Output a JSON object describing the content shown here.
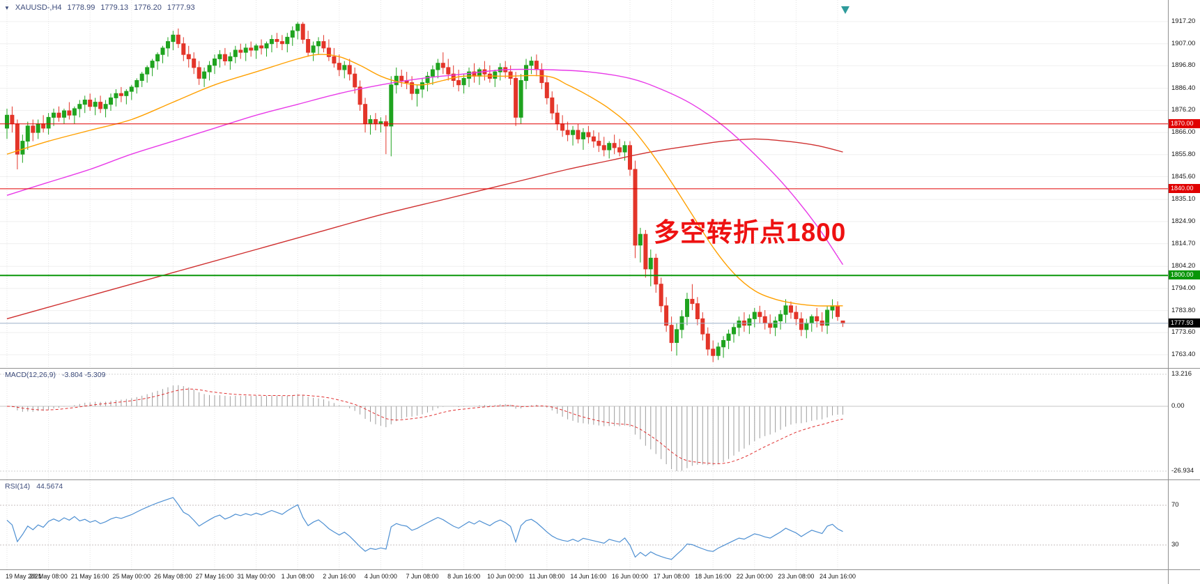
{
  "header": {
    "dropdown_icon": "▼",
    "symbol_period": "XAUUSD-,H4",
    "ohlc": {
      "open": "1778.99",
      "high": "1779.13",
      "low": "1776.20",
      "close": "1777.93"
    }
  },
  "annotation": {
    "text": "多空转折点1800",
    "color": "#ee1111"
  },
  "indicators": {
    "macd": {
      "label": "MACD(12,26,9)",
      "current_values": "-3.804 -5.309",
      "params": {
        "fast": 12,
        "slow": 26,
        "signal": 9
      },
      "axis_labels": [
        "13.216",
        "0.00",
        "-26.934"
      ]
    },
    "rsi": {
      "label": "RSI(14)",
      "current_value": "44.5674",
      "period": 14,
      "levels": [
        70,
        30
      ],
      "axis_labels": [
        "70",
        "30"
      ]
    }
  },
  "colors": {
    "bull": "#1fa31f",
    "bear": "#e33529",
    "level_red": "#e00000",
    "level_green": "#089608",
    "bid_line": "#9aafc8",
    "bid_badge_bg": "#000000",
    "macd_histogram": "#9c9c9c",
    "macd_signal": "#e03030",
    "rsi_line": "#4d8fd2",
    "header_text": "#3b4a7a",
    "grid_h": "#efefef",
    "grid_v": "#e3e3e3",
    "separator": "#909090",
    "shift_marker": "#2e9b9b"
  },
  "chart_data": {
    "type": "candlestick",
    "title": "XAUUSD-,H4",
    "symbol": "XAUUSD-",
    "timeframe": "H4",
    "ylim": [
      1757.3,
      1927.2
    ],
    "price_ticks": [
      "1917.20",
      "1907.00",
      "1896.80",
      "1886.40",
      "1876.20",
      "1866.00",
      "1855.80",
      "1845.60",
      "1835.10",
      "1824.90",
      "1814.70",
      "1804.20",
      "1794.00",
      "1783.80",
      "1773.60",
      "1763.40"
    ],
    "time_labels": [
      {
        "text": "19 May 2021",
        "bar": 0
      },
      {
        "text": "20 May 08:00",
        "bar": 8
      },
      {
        "text": "21 May 16:00",
        "bar": 16
      },
      {
        "text": "25 May 00:00",
        "bar": 24
      },
      {
        "text": "26 May 08:00",
        "bar": 32
      },
      {
        "text": "27 May 16:00",
        "bar": 40
      },
      {
        "text": "31 May 00:00",
        "bar": 48
      },
      {
        "text": "1 Jun 08:00",
        "bar": 56
      },
      {
        "text": "2 Jun 16:00",
        "bar": 64
      },
      {
        "text": "4 Jun 00:00",
        "bar": 72
      },
      {
        "text": "7 Jun 08:00",
        "bar": 80
      },
      {
        "text": "8 Jun 16:00",
        "bar": 88
      },
      {
        "text": "10 Jun 00:00",
        "bar": 96
      },
      {
        "text": "11 Jun 08:00",
        "bar": 104
      },
      {
        "text": "14 Jun 16:00",
        "bar": 112
      },
      {
        "text": "16 Jun 00:00",
        "bar": 120
      },
      {
        "text": "17 Jun 08:00",
        "bar": 128
      },
      {
        "text": "18 Jun 16:00",
        "bar": 136
      },
      {
        "text": "22 Jun 00:00",
        "bar": 144
      },
      {
        "text": "23 Jun 08:00",
        "bar": 152
      },
      {
        "text": "24 Jun 16:00",
        "bar": 160
      }
    ],
    "hlines": [
      {
        "value": 1870.0,
        "label": "1870.00",
        "color": "#e00000",
        "width": 1
      },
      {
        "value": 1840.0,
        "label": "1840.00",
        "color": "#e00000",
        "width": 1
      },
      {
        "value": 1800.0,
        "label": "1800.00",
        "color": "#089608",
        "width": 2
      }
    ],
    "bid": {
      "value": 1777.93,
      "label": "1777.93"
    },
    "moving_averages": [
      {
        "name": "ma-slow-red",
        "color": "#cf2f2f",
        "points": [
          [
            0,
            1780
          ],
          [
            12,
            1788
          ],
          [
            24,
            1796
          ],
          [
            36,
            1804
          ],
          [
            48,
            1812
          ],
          [
            60,
            1820
          ],
          [
            72,
            1828
          ],
          [
            84,
            1835
          ],
          [
            96,
            1842
          ],
          [
            108,
            1849
          ],
          [
            116,
            1853
          ],
          [
            124,
            1857
          ],
          [
            132,
            1860
          ],
          [
            138,
            1862
          ],
          [
            144,
            1863
          ],
          [
            150,
            1862
          ],
          [
            156,
            1860
          ],
          [
            161,
            1857
          ]
        ]
      },
      {
        "name": "ma-mid-magenta",
        "color": "#e83ae8",
        "points": [
          [
            0,
            1837
          ],
          [
            8,
            1843
          ],
          [
            16,
            1849
          ],
          [
            24,
            1856
          ],
          [
            32,
            1862
          ],
          [
            40,
            1868
          ],
          [
            48,
            1874
          ],
          [
            56,
            1879
          ],
          [
            64,
            1884
          ],
          [
            72,
            1888
          ],
          [
            80,
            1891
          ],
          [
            88,
            1893
          ],
          [
            96,
            1895
          ],
          [
            104,
            1895
          ],
          [
            112,
            1894
          ],
          [
            120,
            1891
          ],
          [
            126,
            1886
          ],
          [
            132,
            1879
          ],
          [
            138,
            1869
          ],
          [
            144,
            1856
          ],
          [
            150,
            1841
          ],
          [
            156,
            1823
          ],
          [
            161,
            1805
          ]
        ]
      },
      {
        "name": "ma-fast-orange",
        "color": "#ffa000",
        "points": [
          [
            0,
            1856
          ],
          [
            8,
            1862
          ],
          [
            16,
            1867
          ],
          [
            24,
            1872
          ],
          [
            32,
            1880
          ],
          [
            40,
            1888
          ],
          [
            48,
            1894
          ],
          [
            56,
            1900
          ],
          [
            60,
            1902
          ],
          [
            64,
            1901
          ],
          [
            68,
            1897
          ],
          [
            72,
            1892
          ],
          [
            76,
            1889
          ],
          [
            80,
            1888
          ],
          [
            84,
            1890
          ],
          [
            88,
            1892
          ],
          [
            96,
            1892
          ],
          [
            104,
            1892
          ],
          [
            108,
            1888
          ],
          [
            112,
            1883
          ],
          [
            116,
            1877
          ],
          [
            120,
            1869
          ],
          [
            124,
            1857
          ],
          [
            128,
            1843
          ],
          [
            132,
            1828
          ],
          [
            136,
            1813
          ],
          [
            140,
            1801
          ],
          [
            144,
            1793
          ],
          [
            148,
            1789
          ],
          [
            152,
            1787
          ],
          [
            156,
            1786
          ],
          [
            161,
            1786
          ]
        ]
      }
    ],
    "ohlc": [
      [
        1868,
        1877,
        1863,
        1874
      ],
      [
        1874,
        1878,
        1866,
        1870
      ],
      [
        1870,
        1872,
        1849,
        1856
      ],
      [
        1856,
        1865,
        1852,
        1862
      ],
      [
        1862,
        1871,
        1858,
        1869
      ],
      [
        1869,
        1872,
        1862,
        1866
      ],
      [
        1866,
        1872,
        1863,
        1870
      ],
      [
        1870,
        1874,
        1866,
        1868
      ],
      [
        1868,
        1875,
        1865,
        1873
      ],
      [
        1873,
        1877,
        1869,
        1875
      ],
      [
        1875,
        1878,
        1871,
        1873
      ],
      [
        1873,
        1877,
        1870,
        1876
      ],
      [
        1876,
        1880,
        1872,
        1874
      ],
      [
        1874,
        1878,
        1870,
        1877
      ],
      [
        1877,
        1881,
        1873,
        1879
      ],
      [
        1879,
        1883,
        1875,
        1881
      ],
      [
        1881,
        1884,
        1876,
        1878
      ],
      [
        1878,
        1882,
        1874,
        1880
      ],
      [
        1880,
        1883,
        1875,
        1877
      ],
      [
        1877,
        1881,
        1873,
        1879
      ],
      [
        1879,
        1884,
        1876,
        1882
      ],
      [
        1882,
        1886,
        1878,
        1884
      ],
      [
        1884,
        1887,
        1880,
        1883
      ],
      [
        1883,
        1886,
        1879,
        1885
      ],
      [
        1885,
        1888,
        1881,
        1887
      ],
      [
        1887,
        1891,
        1884,
        1890
      ],
      [
        1890,
        1894,
        1887,
        1893
      ],
      [
        1893,
        1897,
        1889,
        1896
      ],
      [
        1896,
        1900,
        1892,
        1899
      ],
      [
        1899,
        1903,
        1895,
        1902
      ],
      [
        1902,
        1906,
        1898,
        1905
      ],
      [
        1905,
        1910,
        1901,
        1908
      ],
      [
        1908,
        1913,
        1904,
        1911
      ],
      [
        1911,
        1914,
        1905,
        1907
      ],
      [
        1907,
        1910,
        1899,
        1902
      ],
      [
        1902,
        1906,
        1896,
        1900
      ],
      [
        1900,
        1903,
        1893,
        1896
      ],
      [
        1896,
        1899,
        1888,
        1891
      ],
      [
        1891,
        1896,
        1887,
        1894
      ],
      [
        1894,
        1899,
        1890,
        1897
      ],
      [
        1897,
        1902,
        1893,
        1900
      ],
      [
        1900,
        1904,
        1896,
        1902
      ],
      [
        1902,
        1905,
        1897,
        1899
      ],
      [
        1899,
        1903,
        1895,
        1901
      ],
      [
        1901,
        1906,
        1898,
        1904
      ],
      [
        1904,
        1907,
        1900,
        1903
      ],
      [
        1903,
        1907,
        1899,
        1905
      ],
      [
        1905,
        1908,
        1901,
        1904
      ],
      [
        1904,
        1907,
        1900,
        1906
      ],
      [
        1906,
        1909,
        1902,
        1905
      ],
      [
        1905,
        1908,
        1901,
        1907
      ],
      [
        1907,
        1911,
        1903,
        1909
      ],
      [
        1909,
        1912,
        1905,
        1908
      ],
      [
        1908,
        1911,
        1904,
        1907
      ],
      [
        1907,
        1912,
        1903,
        1910
      ],
      [
        1910,
        1915,
        1906,
        1913
      ],
      [
        1913,
        1917,
        1909,
        1916
      ],
      [
        1916,
        1917,
        1907,
        1909
      ],
      [
        1909,
        1913,
        1901,
        1903
      ],
      [
        1903,
        1908,
        1899,
        1906
      ],
      [
        1906,
        1910,
        1902,
        1908
      ],
      [
        1908,
        1911,
        1903,
        1905
      ],
      [
        1905,
        1909,
        1899,
        1901
      ],
      [
        1901,
        1905,
        1896,
        1898
      ],
      [
        1898,
        1902,
        1892,
        1895
      ],
      [
        1895,
        1899,
        1891,
        1897
      ],
      [
        1897,
        1900,
        1890,
        1893
      ],
      [
        1893,
        1896,
        1884,
        1887
      ],
      [
        1887,
        1890,
        1876,
        1879
      ],
      [
        1879,
        1882,
        1866,
        1870
      ],
      [
        1870,
        1874,
        1865,
        1872
      ],
      [
        1872,
        1875,
        1867,
        1870
      ],
      [
        1870,
        1873,
        1866,
        1871
      ],
      [
        1871,
        1874,
        1856,
        1869
      ],
      [
        1869,
        1892,
        1855,
        1888
      ],
      [
        1888,
        1896,
        1884,
        1892
      ],
      [
        1892,
        1895,
        1887,
        1890
      ],
      [
        1890,
        1894,
        1886,
        1889
      ],
      [
        1889,
        1892,
        1881,
        1884
      ],
      [
        1884,
        1888,
        1878,
        1886
      ],
      [
        1886,
        1891,
        1882,
        1889
      ],
      [
        1889,
        1894,
        1885,
        1892
      ],
      [
        1892,
        1897,
        1888,
        1895
      ],
      [
        1895,
        1900,
        1891,
        1898
      ],
      [
        1898,
        1903,
        1893,
        1896
      ],
      [
        1896,
        1900,
        1890,
        1893
      ],
      [
        1893,
        1897,
        1887,
        1890
      ],
      [
        1890,
        1895,
        1885,
        1888
      ],
      [
        1888,
        1893,
        1884,
        1891
      ],
      [
        1891,
        1896,
        1887,
        1894
      ],
      [
        1894,
        1898,
        1889,
        1892
      ],
      [
        1892,
        1896,
        1888,
        1895
      ],
      [
        1895,
        1899,
        1890,
        1893
      ],
      [
        1893,
        1897,
        1889,
        1891
      ],
      [
        1891,
        1895,
        1887,
        1894
      ],
      [
        1894,
        1898,
        1890,
        1896
      ],
      [
        1896,
        1899,
        1891,
        1894
      ],
      [
        1894,
        1897,
        1888,
        1891
      ],
      [
        1891,
        1894,
        1869,
        1873
      ],
      [
        1873,
        1893,
        1870,
        1890
      ],
      [
        1890,
        1900,
        1886,
        1897
      ],
      [
        1897,
        1901,
        1893,
        1899
      ],
      [
        1899,
        1902,
        1892,
        1895
      ],
      [
        1895,
        1898,
        1886,
        1889
      ],
      [
        1889,
        1892,
        1879,
        1882
      ],
      [
        1882,
        1885,
        1872,
        1875
      ],
      [
        1875,
        1879,
        1867,
        1870
      ],
      [
        1870,
        1874,
        1864,
        1867
      ],
      [
        1867,
        1871,
        1862,
        1865
      ],
      [
        1865,
        1869,
        1860,
        1867
      ],
      [
        1867,
        1870,
        1861,
        1863
      ],
      [
        1863,
        1868,
        1858,
        1866
      ],
      [
        1866,
        1869,
        1861,
        1864
      ],
      [
        1864,
        1867,
        1859,
        1862
      ],
      [
        1862,
        1866,
        1857,
        1860
      ],
      [
        1860,
        1864,
        1855,
        1858
      ],
      [
        1858,
        1862,
        1854,
        1861
      ],
      [
        1861,
        1865,
        1856,
        1859
      ],
      [
        1859,
        1863,
        1855,
        1857
      ],
      [
        1857,
        1862,
        1853,
        1860
      ],
      [
        1860,
        1862,
        1846,
        1849
      ],
      [
        1849,
        1853,
        1808,
        1814
      ],
      [
        1814,
        1822,
        1806,
        1819
      ],
      [
        1819,
        1821,
        1799,
        1803
      ],
      [
        1803,
        1812,
        1795,
        1808
      ],
      [
        1808,
        1810,
        1792,
        1796
      ],
      [
        1796,
        1799,
        1783,
        1786
      ],
      [
        1786,
        1790,
        1774,
        1777
      ],
      [
        1777,
        1781,
        1765,
        1769
      ],
      [
        1769,
        1778,
        1763,
        1775
      ],
      [
        1775,
        1784,
        1771,
        1781
      ],
      [
        1781,
        1792,
        1777,
        1789
      ],
      [
        1789,
        1796,
        1784,
        1787
      ],
      [
        1787,
        1790,
        1777,
        1780
      ],
      [
        1780,
        1783,
        1770,
        1773
      ],
      [
        1773,
        1776,
        1763,
        1766
      ],
      [
        1766,
        1770,
        1760,
        1763
      ],
      [
        1763,
        1769,
        1761,
        1767
      ],
      [
        1767,
        1772,
        1762,
        1770
      ],
      [
        1770,
        1775,
        1766,
        1773
      ],
      [
        1773,
        1778,
        1769,
        1776
      ],
      [
        1776,
        1781,
        1772,
        1779
      ],
      [
        1779,
        1783,
        1774,
        1777
      ],
      [
        1777,
        1782,
        1773,
        1780
      ],
      [
        1780,
        1785,
        1776,
        1783
      ],
      [
        1783,
        1786,
        1778,
        1781
      ],
      [
        1781,
        1784,
        1775,
        1778
      ],
      [
        1778,
        1782,
        1773,
        1776
      ],
      [
        1776,
        1781,
        1772,
        1779
      ],
      [
        1779,
        1784,
        1775,
        1782
      ],
      [
        1782,
        1789,
        1778,
        1786
      ],
      [
        1786,
        1788,
        1780,
        1783
      ],
      [
        1783,
        1786,
        1777,
        1780
      ],
      [
        1780,
        1783,
        1772,
        1775
      ],
      [
        1775,
        1780,
        1771,
        1778
      ],
      [
        1778,
        1782,
        1774,
        1781
      ],
      [
        1781,
        1785,
        1776,
        1779
      ],
      [
        1779,
        1783,
        1774,
        1777
      ],
      [
        1777,
        1786,
        1773,
        1784
      ],
      [
        1784,
        1789,
        1780,
        1786
      ],
      [
        1786,
        1788,
        1779,
        1781
      ],
      [
        1778.99,
        1779.13,
        1776.2,
        1777.93
      ]
    ]
  }
}
